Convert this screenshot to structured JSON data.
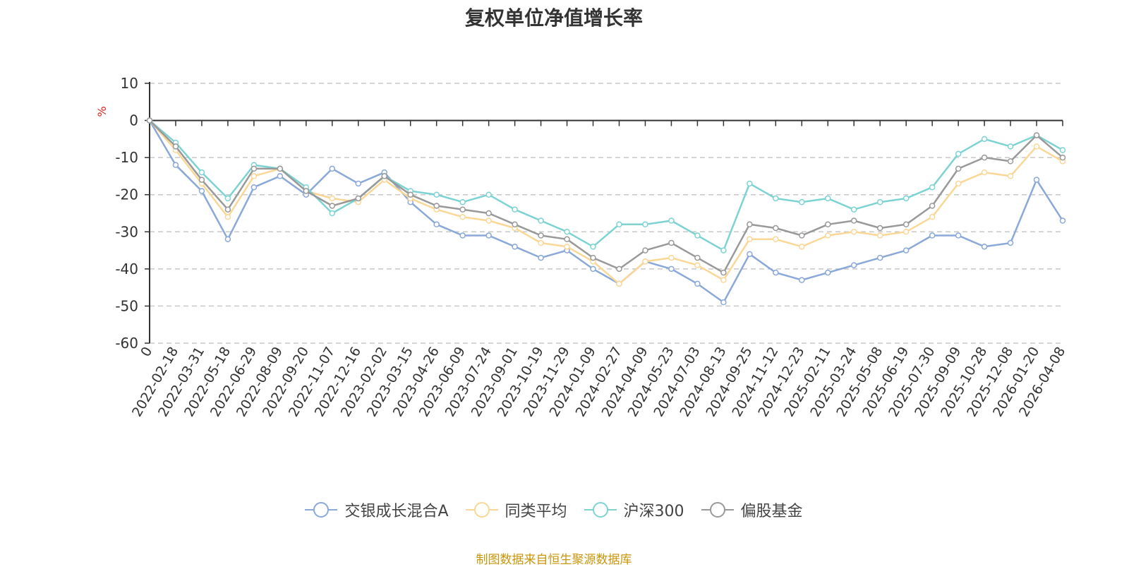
{
  "chart_data": {
    "type": "line",
    "title": "复权单位净值增长率",
    "ylabel": "%",
    "ylim": [
      -60,
      10
    ],
    "yticks": [
      10,
      0,
      -10,
      -20,
      -30,
      -40,
      -50,
      -60
    ],
    "grid": true,
    "legend_position": "bottom",
    "x": [
      "0",
      "2022-02-18",
      "2022-03-31",
      "2022-05-18",
      "2022-06-29",
      "2022-08-09",
      "2022-09-20",
      "2022-11-07",
      "2022-12-16",
      "2023-02-02",
      "2023-03-15",
      "2023-04-26",
      "2023-06-09",
      "2023-07-24",
      "2023-09-01",
      "2023-10-19",
      "2023-11-29",
      "2024-01-09",
      "2024-02-27",
      "2024-04-09",
      "2024-05-23",
      "2024-07-03",
      "2024-08-13",
      "2024-09-25",
      "2024-11-12",
      "2024-12-23",
      "2025-02-11",
      "2025-03-24",
      "2025-05-08",
      "2025-06-19",
      "2025-07-30",
      "2025-09-09",
      "2025-10-28",
      "2025-12-08",
      "2026-01-20",
      "2026-04-08"
    ],
    "series": [
      {
        "name": "交银成长混合A",
        "color": "#8aa8d8",
        "values": [
          0,
          -12,
          -19,
          -32,
          -18,
          -15,
          -20,
          -13,
          -17,
          -14,
          -22,
          -28,
          -31,
          -31,
          -34,
          -37,
          -35,
          -40,
          -44,
          -38,
          -40,
          -44,
          -49,
          -36,
          -41,
          -43,
          -41,
          -39,
          -37,
          -35,
          -31,
          -31,
          -34,
          -33,
          -16,
          -27
        ]
      },
      {
        "name": "同类平均",
        "color": "#fad796",
        "values": [
          0,
          -8,
          -17,
          -26,
          -15,
          -13,
          -19,
          -21,
          -22,
          -16,
          -21,
          -24,
          -26,
          -27,
          -29,
          -33,
          -34,
          -38,
          -44,
          -38,
          -37,
          -39,
          -43,
          -32,
          -32,
          -34,
          -31,
          -30,
          -31,
          -30,
          -26,
          -17,
          -14,
          -15,
          -7,
          -11
        ]
      },
      {
        "name": "沪深300",
        "color": "#7dd3d3",
        "values": [
          0,
          -6,
          -14,
          -21,
          -12,
          -13,
          -18,
          -25,
          -21,
          -15,
          -19,
          -20,
          -22,
          -20,
          -24,
          -27,
          -30,
          -34,
          -28,
          -28,
          -27,
          -31,
          -35,
          -17,
          -21,
          -22,
          -21,
          -24,
          -22,
          -21,
          -18,
          -9,
          -5,
          -7,
          -4,
          -8
        ]
      },
      {
        "name": "偏股基金",
        "color": "#999999",
        "values": [
          0,
          -7,
          -16,
          -24,
          -13,
          -13,
          -19,
          -23,
          -21,
          -15,
          -20,
          -23,
          -24,
          -25,
          -28,
          -31,
          -32,
          -37,
          -40,
          -35,
          -33,
          -37,
          -41,
          -28,
          -29,
          -31,
          -28,
          -27,
          -29,
          -28,
          -23,
          -13,
          -10,
          -11,
          -4,
          -10
        ]
      }
    ]
  },
  "source_text": "制图数据来自恒生聚源数据库"
}
